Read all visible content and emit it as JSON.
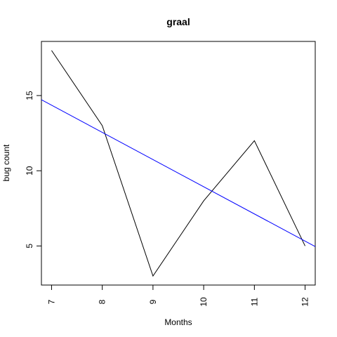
{
  "chart_data": {
    "type": "line",
    "title": "graal",
    "xlabel": "Months",
    "ylabel": "bug count",
    "x": [
      7,
      8,
      9,
      10,
      11,
      12
    ],
    "xlim": [
      6.8,
      12.2
    ],
    "ylim": [
      2.4,
      18.6
    ],
    "xticks": [
      7,
      8,
      9,
      10,
      11,
      12
    ],
    "yticks": [
      5,
      10,
      15
    ],
    "grid": false,
    "series": [
      {
        "values": [
          18,
          13,
          3,
          8,
          12,
          5
        ],
        "color": "#000000"
      }
    ],
    "trend_line": {
      "x": [
        6.8,
        12.2
      ],
      "y": [
        14.72,
        4.96
      ],
      "color": "#0000ff"
    }
  }
}
